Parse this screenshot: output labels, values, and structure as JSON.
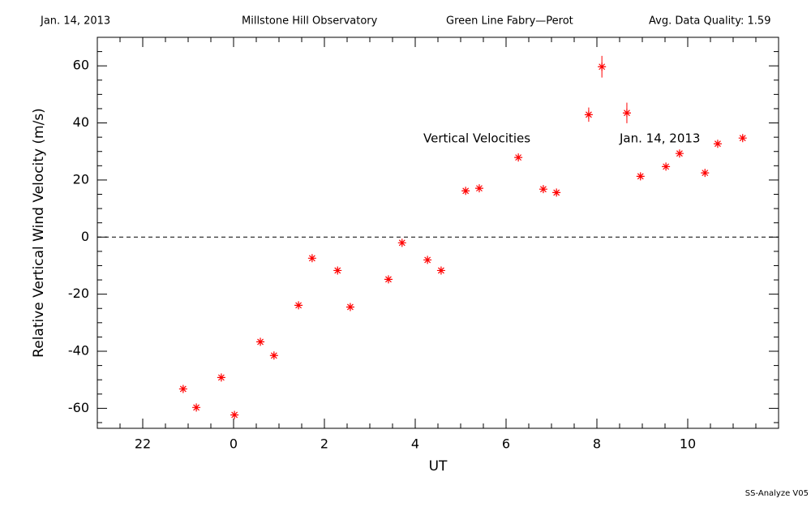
{
  "chart_data": {
    "type": "scatter",
    "header": {
      "date": "Jan. 14, 2013",
      "site": "Millstone Hill Observatory",
      "instrument": "Green Line Fabry—Perot",
      "quality": "Avg. Data Quality: 1.59"
    },
    "footer": "SS-Analyze V05",
    "x_label": "UT",
    "y_label": "Relative Vertical Wind Velocity (m/s)",
    "annotations": [
      "Vertical Velocities",
      "Jan. 14, 2013"
    ],
    "xlim": [
      21,
      36
    ],
    "ylim": [
      -67,
      70
    ],
    "xticks": [
      22,
      {
        "value": 24,
        "label": "0"
      },
      {
        "value": 26,
        "label": "2"
      },
      {
        "value": 28,
        "label": "4"
      },
      {
        "value": 30,
        "label": "6"
      },
      {
        "value": 32,
        "label": "8"
      },
      {
        "value": 34,
        "label": "10"
      }
    ],
    "yticks": [
      -60,
      -40,
      -20,
      0,
      20,
      40,
      60
    ],
    "reference_line": 0,
    "series": [
      {
        "color": "#ff0000",
        "x": [
          22.89,
          23.18,
          23.73,
          24.02,
          24.59,
          24.89,
          25.43,
          25.73,
          26.29,
          26.57,
          27.41,
          27.71,
          28.27,
          28.57,
          29.11,
          29.41,
          30.27,
          30.82,
          31.11,
          31.82,
          32.11,
          32.66,
          32.96,
          33.52,
          33.82,
          34.38,
          34.66,
          35.21
        ],
        "values": [
          -53.2,
          -59.7,
          -49.2,
          -62.3,
          -36.7,
          -41.5,
          -23.9,
          -7.4,
          -11.7,
          -24.5,
          -14.8,
          -2.0,
          -8.0,
          -11.7,
          16.2,
          17.1,
          27.9,
          16.8,
          15.6,
          42.9,
          59.7,
          43.5,
          21.3,
          24.7,
          29.3,
          22.5,
          32.7,
          34.7
        ],
        "errors": [
          0.8,
          0.8,
          0.8,
          0.8,
          0.8,
          0.8,
          0.8,
          0.8,
          0.8,
          0.8,
          0.8,
          0.8,
          0.8,
          0.8,
          0.8,
          0.8,
          0.8,
          0.8,
          0.8,
          2.5,
          3.8,
          3.6,
          0.8,
          0.8,
          0.8,
          0.8,
          0.8,
          0.8
        ]
      }
    ]
  }
}
